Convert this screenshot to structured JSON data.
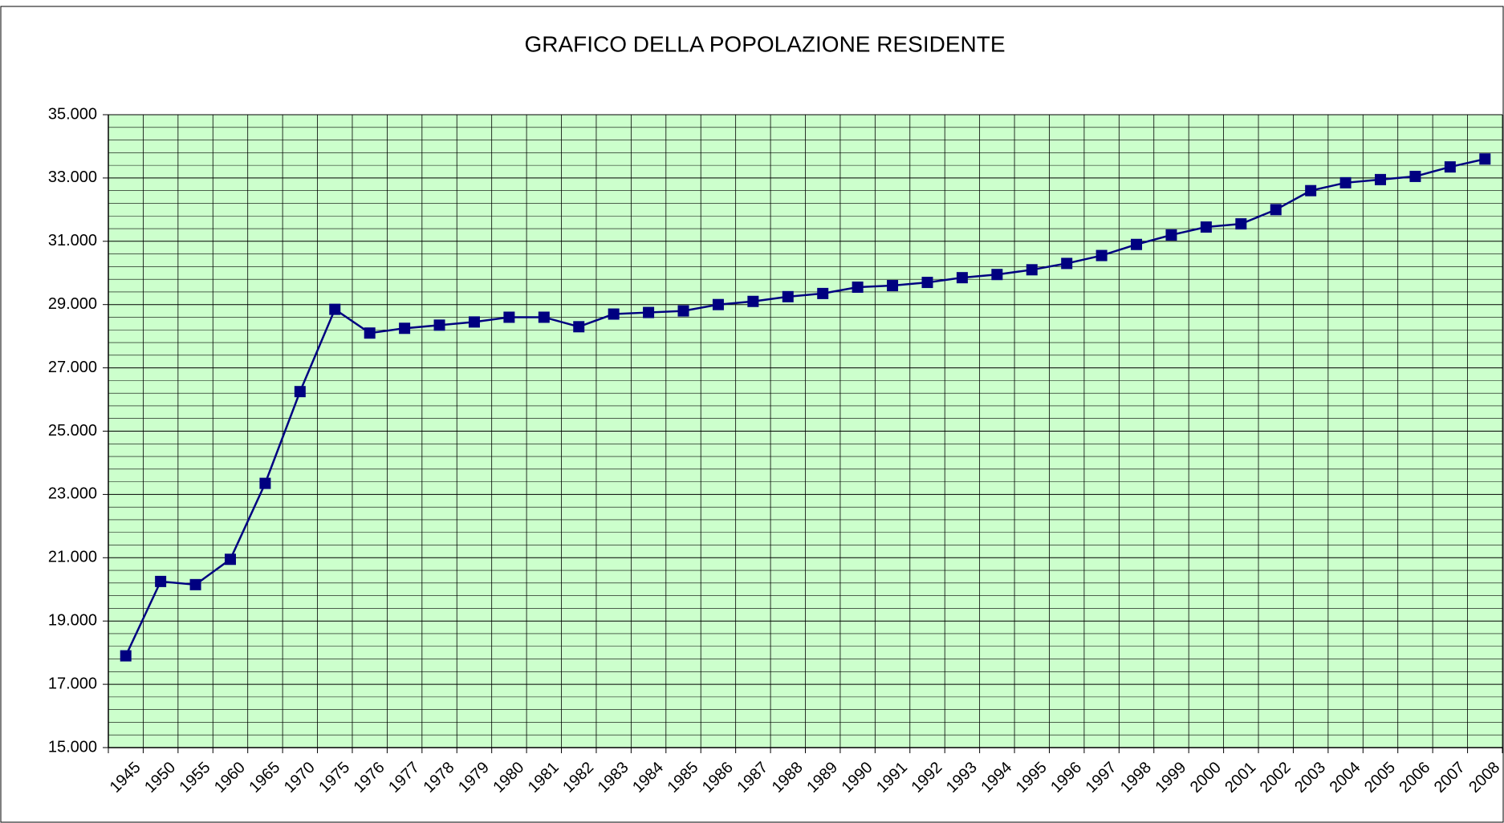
{
  "chart_data": {
    "type": "line",
    "title": "GRAFICO DELLA POPOLAZIONE RESIDENTE",
    "categories": [
      "1945",
      "1950",
      "1955",
      "1960",
      "1965",
      "1970",
      "1975",
      "1976",
      "1977",
      "1978",
      "1979",
      "1980",
      "1981",
      "1982",
      "1983",
      "1984",
      "1985",
      "1986",
      "1987",
      "1988",
      "1989",
      "1990",
      "1991",
      "1992",
      "1993",
      "1994",
      "1995",
      "1996",
      "1997",
      "1998",
      "1999",
      "2000",
      "2001",
      "2002",
      "2003",
      "2004",
      "2005",
      "2006",
      "2007",
      "2008"
    ],
    "values": [
      17900,
      20250,
      20150,
      20950,
      23350,
      26250,
      28850,
      28100,
      28250,
      28350,
      28450,
      28600,
      28600,
      28300,
      28700,
      28750,
      28800,
      29000,
      29100,
      29250,
      29350,
      29550,
      29600,
      29700,
      29850,
      29950,
      30100,
      30300,
      30550,
      30900,
      31200,
      31450,
      31550,
      32000,
      32600,
      32850,
      32950,
      33050,
      33350,
      33600
    ],
    "color": "#000080",
    "plot_background": "#ccffcc",
    "grid": true,
    "ylim": [
      15000,
      35000
    ],
    "yticks": [
      {
        "value": 15000,
        "label": "15.000"
      },
      {
        "value": 17000,
        "label": "17.000"
      },
      {
        "value": 19000,
        "label": "19.000"
      },
      {
        "value": 21000,
        "label": "21.000"
      },
      {
        "value": 23000,
        "label": "23.000"
      },
      {
        "value": 25000,
        "label": "25.000"
      },
      {
        "value": 27000,
        "label": "27.000"
      },
      {
        "value": 29000,
        "label": "29.000"
      },
      {
        "value": 31000,
        "label": "31.000"
      },
      {
        "value": 33000,
        "label": "33.000"
      },
      {
        "value": 35000,
        "label": "35.000"
      }
    ]
  }
}
